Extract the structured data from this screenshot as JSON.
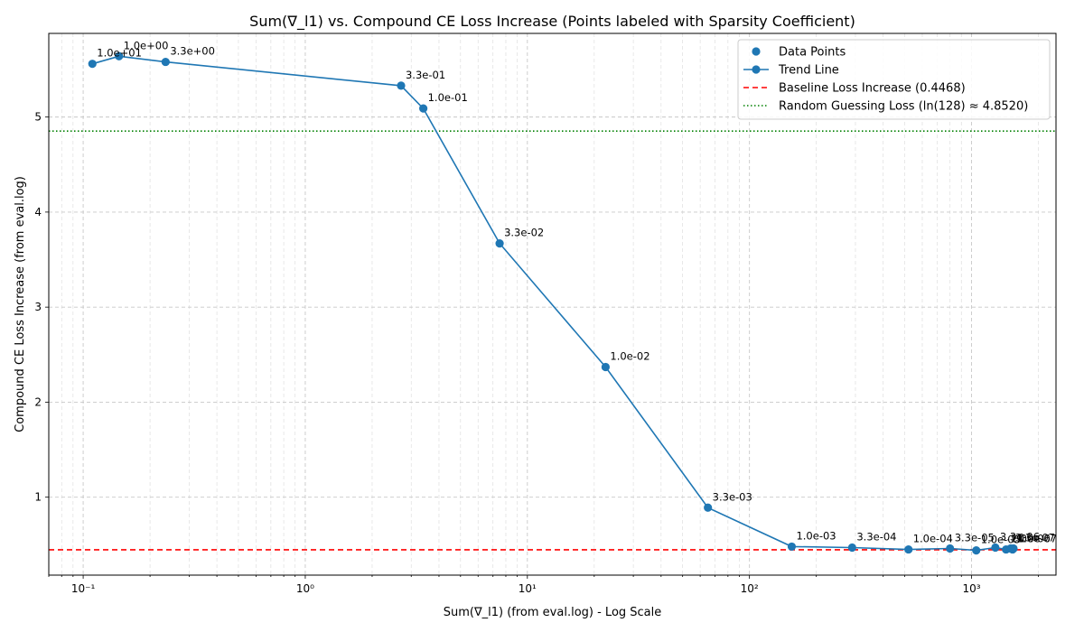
{
  "chart_data": {
    "type": "line",
    "title": "Sum(∇_l1) vs. Compound CE Loss Increase (Points labeled with Sparsity Coefficient)",
    "xlabel": "Sum(∇_l1) (from eval.log) - Log Scale",
    "ylabel": "Compound CE Loss Increase (from eval.log)",
    "xscale": "log",
    "xlim": [
      0.07,
      2400
    ],
    "ylim": [
      0.18,
      5.88
    ],
    "x_tick_labels": [
      "10⁻¹",
      "10⁰",
      "10¹",
      "10²",
      "10³"
    ],
    "x_tick_values": [
      0.1,
      1,
      10,
      100,
      1000
    ],
    "y_ticks": [
      1,
      2,
      3,
      4,
      5
    ],
    "grid": true,
    "legend_position": "top-right",
    "colors": {
      "series": "#1f77b4",
      "baseline": "#ff0000",
      "random": "#008000"
    },
    "series": [
      {
        "name": "Data Points",
        "points": [
          {
            "x": 0.11,
            "y": 5.56,
            "label": "1.0e+01"
          },
          {
            "x": 0.145,
            "y": 5.64,
            "label": "1.0e+00"
          },
          {
            "x": 0.235,
            "y": 5.58,
            "label": "3.3e+00"
          },
          {
            "x": 2.7,
            "y": 5.33,
            "label": "3.3e-01"
          },
          {
            "x": 3.4,
            "y": 5.09,
            "label": "1.0e-01"
          },
          {
            "x": 7.5,
            "y": 3.67,
            "label": "3.3e-02"
          },
          {
            "x": 22.5,
            "y": 2.37,
            "label": "1.0e-02"
          },
          {
            "x": 65,
            "y": 0.89,
            "label": "3.3e-03"
          },
          {
            "x": 155,
            "y": 0.48,
            "label": "1.0e-03"
          },
          {
            "x": 290,
            "y": 0.47,
            "label": "3.3e-04"
          },
          {
            "x": 520,
            "y": 0.45,
            "label": "1.0e-04"
          },
          {
            "x": 800,
            "y": 0.46,
            "label": "3.3e-05"
          },
          {
            "x": 1050,
            "y": 0.44,
            "label": "1.0e-05"
          },
          {
            "x": 1280,
            "y": 0.47,
            "label": "3.3e-06"
          },
          {
            "x": 1430,
            "y": 0.45,
            "label": "1.0e-06"
          },
          {
            "x": 1500,
            "y": 0.46,
            "label": "3.3e-07"
          },
          {
            "x": 1530,
            "y": 0.45,
            "label": "1.0e-07"
          },
          {
            "x": 1545,
            "y": 0.46,
            "label": "0"
          }
        ]
      },
      {
        "name": "Trend Line"
      }
    ],
    "reference_lines": [
      {
        "name": "Baseline Loss Increase (0.4468)",
        "y": 0.4468,
        "style": "dashed"
      },
      {
        "name": "Random Guessing Loss (ln(128) ≈ 4.8520)",
        "y": 4.852,
        "style": "dotted"
      }
    ]
  }
}
